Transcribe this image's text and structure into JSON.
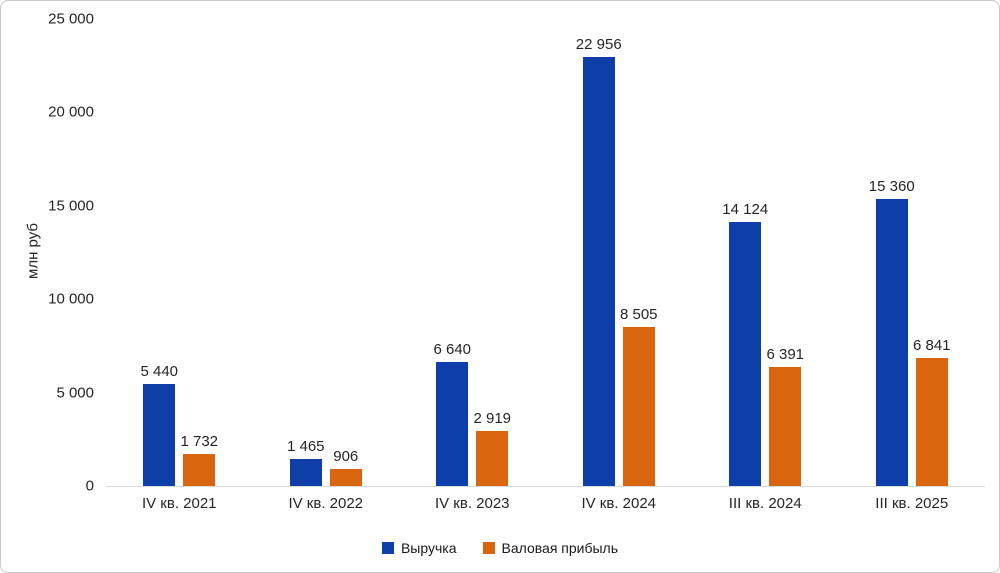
{
  "chart_data": {
    "type": "bar",
    "title": "",
    "ylabel": "млн руб",
    "xlabel": "",
    "categories": [
      "IV кв. 2021",
      "IV кв. 2022",
      "IV кв. 2023",
      "IV кв. 2024",
      "III кв. 2024",
      "III кв. 2025"
    ],
    "series": [
      {
        "name": "Выручка",
        "color": "#0e3fa9",
        "values": [
          5440,
          1465,
          6640,
          22956,
          14124,
          15360
        ]
      },
      {
        "name": "Валовая прибыль",
        "color": "#d9650f",
        "values": [
          1732,
          906,
          2919,
          8505,
          6391,
          6841
        ]
      }
    ],
    "ylim": [
      0,
      25000
    ],
    "yticks": [
      0,
      5000,
      10000,
      15000,
      20000,
      25000
    ],
    "grid": false,
    "legend_position": "bottom",
    "value_labels": true,
    "thousands_separator": " "
  },
  "colors": {
    "axis_line": "#d9d9d9",
    "text": "#262626",
    "frame_border": "#c9c9c9",
    "background": "#ffffff"
  }
}
